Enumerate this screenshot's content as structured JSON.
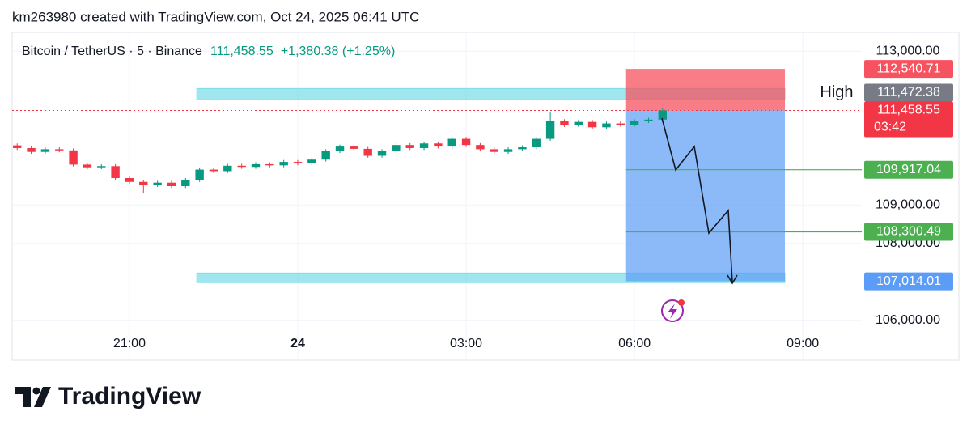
{
  "header": {
    "attribution": "km263980 created with TradingView.com, Oct 24, 2025 06:41 UTC"
  },
  "chart_data": {
    "type": "candlestick",
    "legend": {
      "symbol": "Bitcoin / TetherUS · 5 · Binance",
      "price": "111,458.55",
      "change": "+1,380.38 (+1.25%)"
    },
    "x": [
      19.0,
      19.25,
      19.5,
      19.75,
      20.0,
      20.25,
      20.5,
      20.75,
      21.0,
      21.25,
      21.5,
      21.75,
      22.0,
      22.25,
      22.5,
      22.75,
      23.0,
      23.25,
      23.5,
      23.75,
      24.0,
      24.25,
      24.5,
      24.75,
      25.0,
      25.25,
      25.5,
      25.75,
      26.0,
      26.25,
      26.5,
      26.75,
      27.0,
      27.25,
      27.5,
      27.75,
      28.0,
      28.25,
      28.5,
      28.75,
      29.0,
      29.25,
      29.5,
      29.75,
      30.0,
      30.25,
      30.5
    ],
    "open": [
      110550,
      110480,
      110380,
      110450,
      110420,
      110050,
      109980,
      110010,
      109700,
      109600,
      109520,
      109580,
      109490,
      109650,
      109920,
      109880,
      110020,
      109990,
      110060,
      110030,
      110120,
      110080,
      110180,
      110400,
      110520,
      110460,
      110280,
      110400,
      110560,
      110480,
      110600,
      110520,
      110720,
      110560,
      110450,
      110380,
      110450,
      110500,
      110720,
      111180,
      111080,
      111160,
      111020,
      111120,
      111090,
      111180,
      111220
    ],
    "high": [
      110600,
      110530,
      110500,
      110500,
      110470,
      110100,
      110060,
      110060,
      109750,
      109650,
      109630,
      109630,
      109700,
      109970,
      109970,
      110070,
      110070,
      110110,
      110110,
      110170,
      110170,
      110230,
      110450,
      110570,
      110570,
      110510,
      110450,
      110610,
      110610,
      110650,
      110650,
      110770,
      110770,
      110610,
      110500,
      110500,
      110550,
      110770,
      111430,
      111230,
      111210,
      111210,
      111170,
      111170,
      111230,
      111270,
      111510
    ],
    "low": [
      110430,
      110330,
      110330,
      110370,
      110000,
      109930,
      109930,
      109650,
      109550,
      109300,
      109470,
      109440,
      109440,
      109600,
      109830,
      109830,
      109940,
      109940,
      109980,
      109980,
      110030,
      110030,
      110130,
      110350,
      110410,
      110230,
      110230,
      110350,
      110430,
      110430,
      110470,
      110470,
      110510,
      110400,
      110330,
      110330,
      110400,
      110450,
      110670,
      111030,
      111030,
      110970,
      110970,
      111040,
      111040,
      111130,
      111170
    ],
    "close": [
      110480,
      110380,
      110450,
      110420,
      110050,
      109980,
      110010,
      109700,
      109600,
      109520,
      109580,
      109490,
      109650,
      109920,
      109880,
      110020,
      109990,
      110060,
      110030,
      110120,
      110080,
      110180,
      110400,
      110520,
      110460,
      110280,
      110400,
      110560,
      110480,
      110600,
      110520,
      110720,
      110560,
      110450,
      110380,
      110450,
      110500,
      110720,
      111180,
      111080,
      111160,
      111020,
      111120,
      111090,
      111180,
      111220,
      111458.55
    ],
    "up_color": "#089981",
    "down_color": "#f23645",
    "xlim": [
      18.91,
      34.05
    ],
    "ylim": [
      105700,
      113490
    ],
    "xticks": [
      {
        "value": 21,
        "label": "21:00"
      },
      {
        "value": 24,
        "label": "24"
      },
      {
        "value": 27,
        "label": "03:00"
      },
      {
        "value": 30,
        "label": "06:00"
      },
      {
        "value": 33,
        "label": "09:00"
      }
    ],
    "yticks": [
      {
        "value": 113000,
        "label": "113,000.00"
      },
      {
        "value": 109000,
        "label": "109,000.00"
      },
      {
        "value": 108000,
        "label": "108,000.00"
      },
      {
        "value": 106000,
        "label": "106,000.00"
      }
    ],
    "grid": true,
    "last_price": {
      "value": 111458.55,
      "label": "111,458.55",
      "countdown": "03:42",
      "color": "#f23645"
    },
    "high_level": {
      "name": "High",
      "value": 111472.38,
      "label": "111,472.38",
      "color": "#787b86"
    },
    "position": {
      "xlim": [
        29.85,
        32.68
      ],
      "stop": {
        "value": 112540.71,
        "label": "112,540.71",
        "color": "#f7525f"
      },
      "target": {
        "value": 107014.01,
        "label": "107,014.01",
        "color": "#5b9cf6"
      }
    },
    "take_profits": [
      {
        "value": 109917.04,
        "label": "109,917.04"
      },
      {
        "value": 108300.49,
        "label": "108,300.49"
      }
    ],
    "take_profit_color": "#4caf50",
    "zones": [
      {
        "xlim": [
          22.2,
          32.68
        ],
        "ylim": [
          111740,
          112030
        ]
      },
      {
        "xlim": [
          22.2,
          32.68
        ],
        "ylim": [
          106980,
          107230
        ]
      }
    ],
    "zone_color": "#80deea"
  },
  "footer": {
    "brand": "TradingView"
  }
}
